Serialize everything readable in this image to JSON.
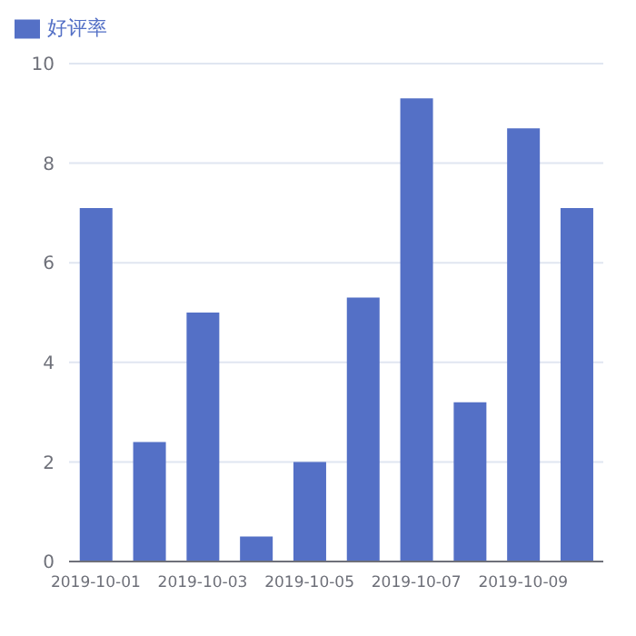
{
  "chart_data": {
    "type": "bar",
    "categories": [
      "2019-10-01",
      null,
      "2019-10-03",
      null,
      "2019-10-05",
      null,
      "2019-10-07",
      null,
      "2019-10-09",
      null
    ],
    "series": [
      {
        "name": "好评率",
        "color": "#5470c6",
        "values": [
          7.1,
          2.4,
          5.0,
          0.5,
          2.0,
          5.3,
          9.3,
          3.2,
          8.7,
          7.1
        ]
      }
    ],
    "ylim": [
      0,
      10
    ],
    "yticks": [
      0,
      2,
      4,
      6,
      8,
      10
    ],
    "grid": "y",
    "legend": "top left"
  }
}
